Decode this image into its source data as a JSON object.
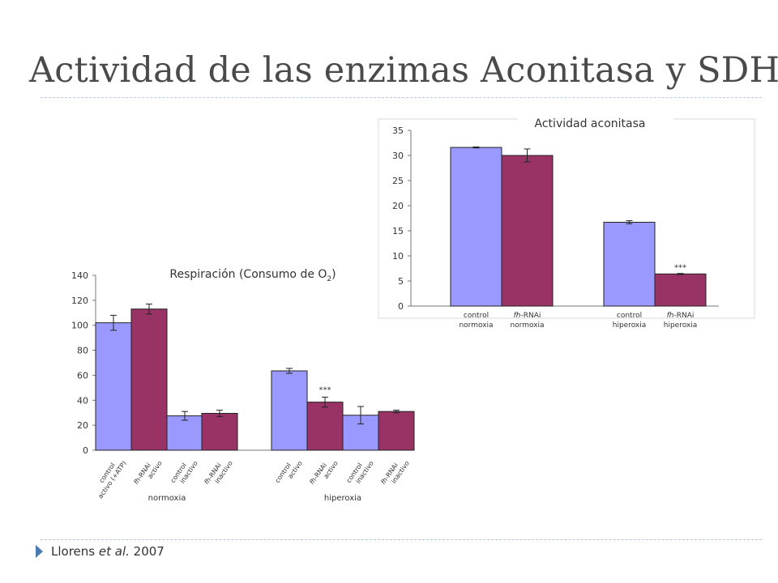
{
  "title": "Actividad de las enzimas Aconitasa y SDH",
  "citation": {
    "author": "Llorens",
    "etal": "et al.",
    "year": "2007"
  },
  "colors": {
    "control": "#9999ff",
    "fhrnai": "#993366",
    "text": "#4a4a4a",
    "rule": "#b8c8d8",
    "bullet": "#4a7ab0"
  },
  "chart_data": [
    {
      "type": "bar",
      "title": "Actividad aconitasa",
      "ylim": [
        0,
        35
      ],
      "yticks": [
        0,
        5,
        10,
        15,
        20,
        25,
        30,
        35
      ],
      "categories": [
        "control normoxia",
        "fh-RNAi normoxia",
        "control hiperoxia",
        "fh-RNAi hiperoxia"
      ],
      "category_lines": [
        [
          "control",
          "normoxia"
        ],
        [
          "fh-RNAi",
          "normoxia"
        ],
        [
          "control",
          "hiperoxia"
        ],
        [
          "fh-RNAi",
          "hiperoxia"
        ]
      ],
      "values": [
        31.6,
        30.0,
        16.7,
        6.4
      ],
      "errors": [
        0.1,
        1.3,
        0.3,
        0.1
      ],
      "groups": [
        "control",
        "fhrnai",
        "control",
        "fhrnai"
      ],
      "annotations": [
        {
          "index": 3,
          "text": "***"
        }
      ],
      "grid": false,
      "legend": "none"
    },
    {
      "type": "bar",
      "title": "Respiración (Consumo de O",
      "title_sub": "2",
      "title_close": ")",
      "ylim": [
        0,
        140
      ],
      "yticks": [
        0,
        20,
        40,
        60,
        80,
        100,
        120,
        140
      ],
      "categories": [
        "control activo (+ATP)",
        "fh-RNAi activo",
        "control inactivo",
        "fh-RNAi inactivo",
        "control activo",
        "fh-RNAi activo",
        "control inactivo",
        "fh-RNAi inactivo"
      ],
      "category_lines": [
        [
          "control",
          "activo (+ATP)"
        ],
        [
          "fh-RNAi",
          "activo"
        ],
        [
          "control",
          "inactivo"
        ],
        [
          "fh-RNAi",
          "inactivo"
        ],
        [
          "control",
          "activo"
        ],
        [
          "fh-RNAi",
          "activo"
        ],
        [
          "control",
          "inactivo"
        ],
        [
          "fh-RNAi",
          "inactivo"
        ]
      ],
      "values": [
        102,
        113,
        27.5,
        29.5,
        63.5,
        38.5,
        28,
        31
      ],
      "errors": [
        6,
        4,
        3.5,
        2.5,
        2,
        4,
        7,
        1
      ],
      "groups": [
        "control",
        "fhrnai",
        "control",
        "fhrnai",
        "control",
        "fhrnai",
        "control",
        "fhrnai"
      ],
      "group_labels": [
        "normoxia",
        "hiperoxia"
      ],
      "annotations": [
        {
          "index": 5,
          "text": "***"
        }
      ],
      "grid": false,
      "legend": "none"
    }
  ]
}
